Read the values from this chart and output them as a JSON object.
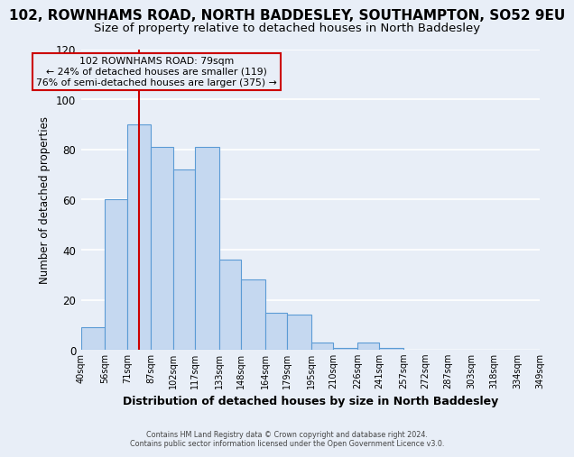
{
  "title": "102, ROWNHAMS ROAD, NORTH BADDESLEY, SOUTHAMPTON, SO52 9EU",
  "subtitle": "Size of property relative to detached houses in North Baddesley",
  "xlabel": "Distribution of detached houses by size in North Baddesley",
  "ylabel": "Number of detached properties",
  "footer_line1": "Contains HM Land Registry data © Crown copyright and database right 2024.",
  "footer_line2": "Contains public sector information licensed under the Open Government Licence v3.0.",
  "bin_labels": [
    "40sqm",
    "56sqm",
    "71sqm",
    "87sqm",
    "102sqm",
    "117sqm",
    "133sqm",
    "148sqm",
    "164sqm",
    "179sqm",
    "195sqm",
    "210sqm",
    "226sqm",
    "241sqm",
    "257sqm",
    "272sqm",
    "287sqm",
    "303sqm",
    "318sqm",
    "334sqm",
    "349sqm"
  ],
  "bin_edges": [
    40,
    56,
    71,
    87,
    102,
    117,
    133,
    148,
    164,
    179,
    195,
    210,
    226,
    241,
    257,
    272,
    287,
    303,
    318,
    334,
    349
  ],
  "bar_heights": [
    9,
    60,
    90,
    81,
    72,
    81,
    36,
    28,
    15,
    14,
    3,
    1,
    3,
    1,
    0,
    0,
    0,
    0,
    0,
    0
  ],
  "bar_color": "#c5d8f0",
  "bar_edge_color": "#5b9bd5",
  "ylim": [
    0,
    120
  ],
  "yticks": [
    0,
    20,
    40,
    60,
    80,
    100,
    120
  ],
  "vline_x": 79,
  "vline_color": "#cc0000",
  "annotation_text_line1": "102 ROWNHAMS ROAD: 79sqm",
  "annotation_text_line2": "← 24% of detached houses are smaller (119)",
  "annotation_text_line3": "76% of semi-detached houses are larger (375) →",
  "annotation_box_color": "#cc0000",
  "bg_color": "#e8eef7",
  "grid_color": "#ffffff",
  "title_fontsize": 11,
  "subtitle_fontsize": 9.5
}
